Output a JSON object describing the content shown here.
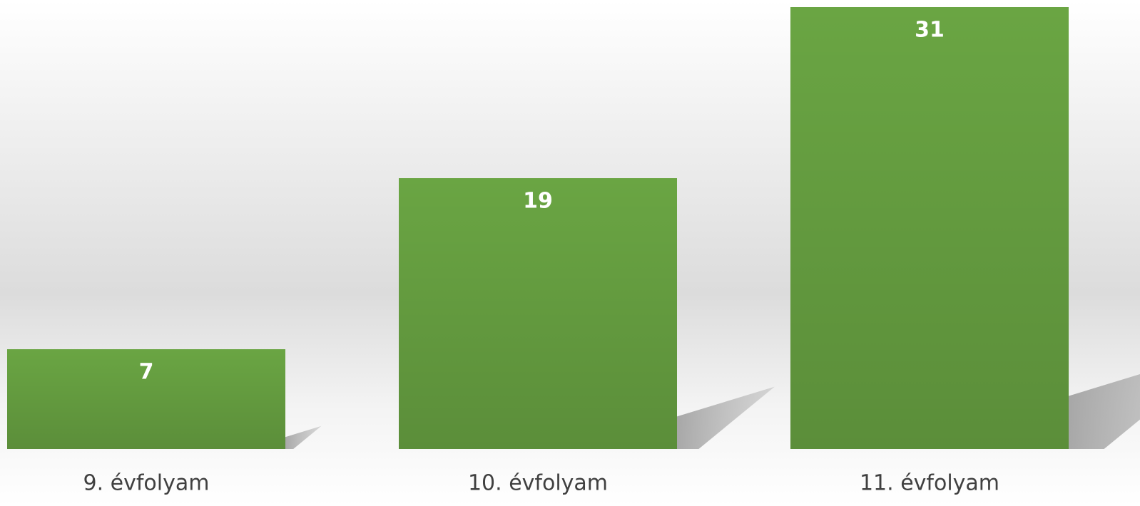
{
  "chart_data": {
    "type": "bar",
    "categories": [
      "9. évfolyam",
      "10. évfolyam",
      "11. évfolyam"
    ],
    "values": [
      7,
      19,
      31
    ],
    "color": "#6aa543",
    "ylim": [
      0,
      31
    ]
  }
}
